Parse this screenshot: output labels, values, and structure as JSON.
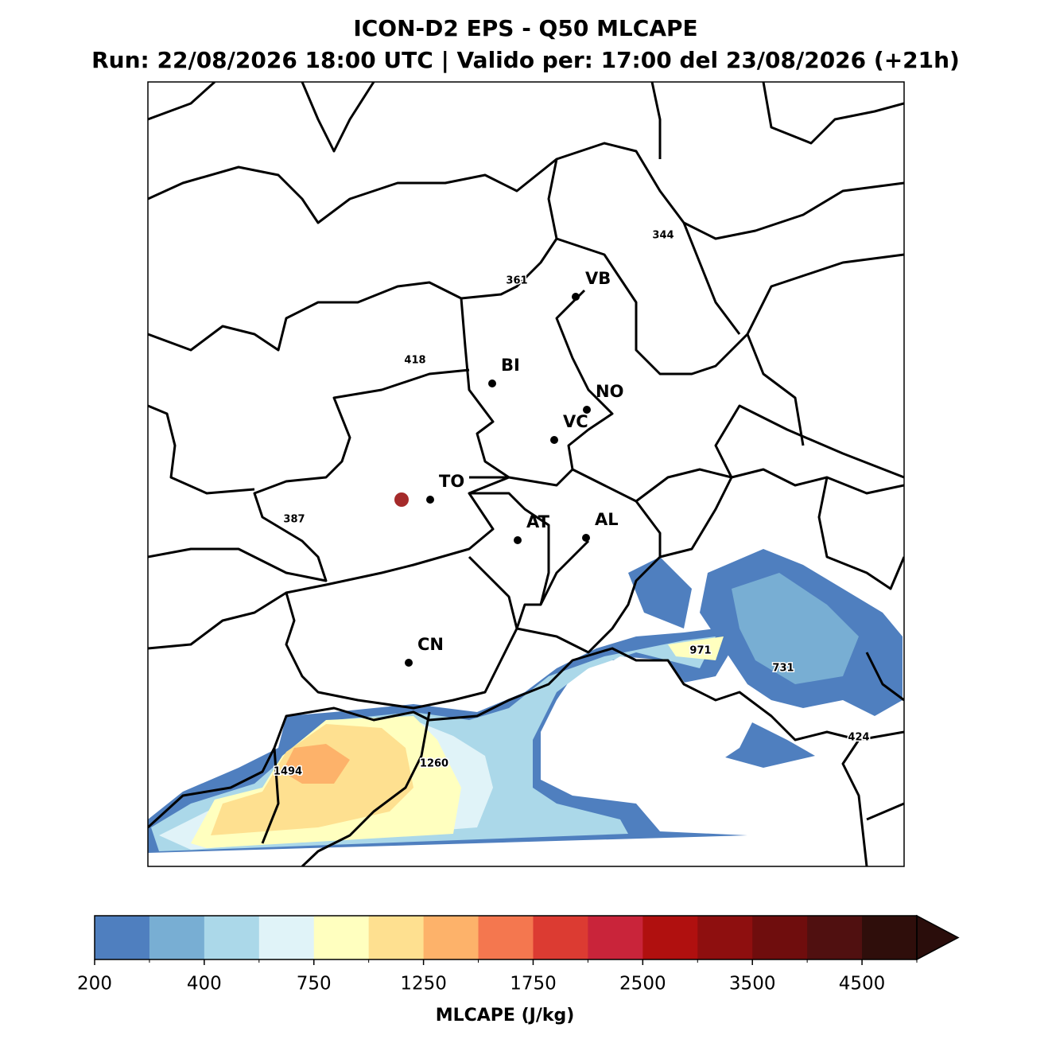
{
  "title": "ICON-D2 EPS - Q50 MLCAPE",
  "subtitle": "Run: 22/08/2026 18:00 UTC | Valido per: 17:00 del 23/08/2026 (+21h)",
  "cities": [
    "VB",
    "BI",
    "NO",
    "VC",
    "TO",
    "AT",
    "AL",
    "CN"
  ],
  "cape_labels": [
    344,
    361,
    418,
    387,
    971,
    731,
    424,
    1494,
    1260
  ],
  "colorbar": {
    "label": "MLCAPE (J/kg)",
    "levels": [
      200,
      300,
      400,
      500,
      750,
      1000,
      1250,
      1500,
      1750,
      2000,
      2500,
      3000,
      3500,
      4000,
      4500,
      5000
    ],
    "colors": [
      "#4f7fbf",
      "#78aed3",
      "#abd8e9",
      "#e0f3f8",
      "#ffffbf",
      "#fee090",
      "#fdb26a",
      "#f4774f",
      "#dc3b32",
      "#c9243a",
      "#b0100f",
      "#8e0f0f",
      "#6f0d0d",
      "#501010",
      "#2f0e0b"
    ],
    "extend_color": "#2a0d0b",
    "ticks": [
      200,
      400,
      750,
      1250,
      1750,
      2500,
      3500,
      4500
    ]
  }
}
